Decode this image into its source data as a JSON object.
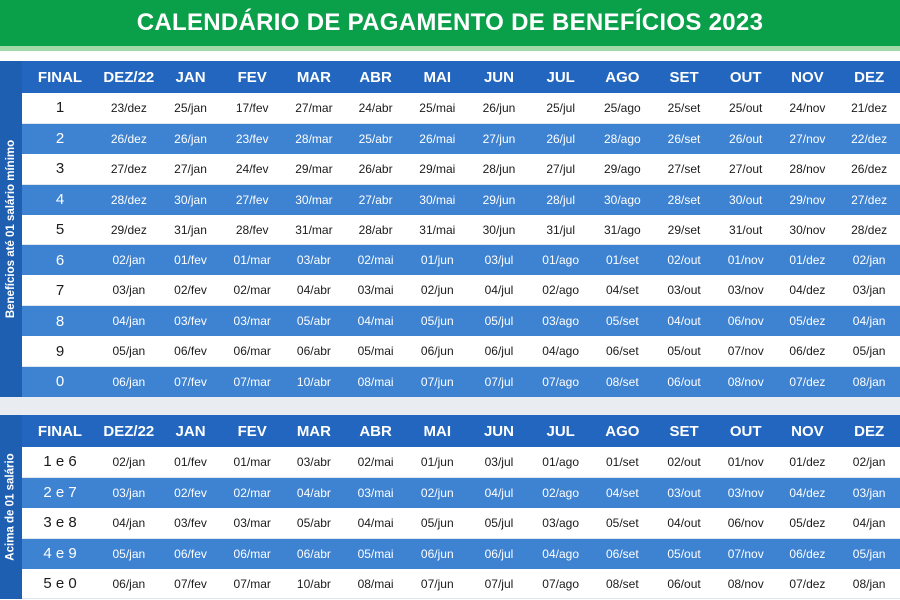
{
  "title": "CALENDÁRIO DE PAGAMENTO DE BENEFÍCIOS 2023",
  "headers": [
    "FINAL",
    "DEZ/22",
    "JAN",
    "FEV",
    "MAR",
    "ABR",
    "MAI",
    "JUN",
    "JUL",
    "AGO",
    "SET",
    "OUT",
    "NOV",
    "DEZ"
  ],
  "section1": {
    "side_label": "Benefícios até 01 salário mínimo",
    "rows": [
      [
        "1",
        "23/dez",
        "25/jan",
        "17/fev",
        "27/mar",
        "24/abr",
        "25/mai",
        "26/jun",
        "25/jul",
        "25/ago",
        "25/set",
        "25/out",
        "24/nov",
        "21/dez"
      ],
      [
        "2",
        "26/dez",
        "26/jan",
        "23/fev",
        "28/mar",
        "25/abr",
        "26/mai",
        "27/jun",
        "26/jul",
        "28/ago",
        "26/set",
        "26/out",
        "27/nov",
        "22/dez"
      ],
      [
        "3",
        "27/dez",
        "27/jan",
        "24/fev",
        "29/mar",
        "26/abr",
        "29/mai",
        "28/jun",
        "27/jul",
        "29/ago",
        "27/set",
        "27/out",
        "28/nov",
        "26/dez"
      ],
      [
        "4",
        "28/dez",
        "30/jan",
        "27/fev",
        "30/mar",
        "27/abr",
        "30/mai",
        "29/jun",
        "28/jul",
        "30/ago",
        "28/set",
        "30/out",
        "29/nov",
        "27/dez"
      ],
      [
        "5",
        "29/dez",
        "31/jan",
        "28/fev",
        "31/mar",
        "28/abr",
        "31/mai",
        "30/jun",
        "31/jul",
        "31/ago",
        "29/set",
        "31/out",
        "30/nov",
        "28/dez"
      ],
      [
        "6",
        "02/jan",
        "01/fev",
        "01/mar",
        "03/abr",
        "02/mai",
        "01/jun",
        "03/jul",
        "01/ago",
        "01/set",
        "02/out",
        "01/nov",
        "01/dez",
        "02/jan"
      ],
      [
        "7",
        "03/jan",
        "02/fev",
        "02/mar",
        "04/abr",
        "03/mai",
        "02/jun",
        "04/jul",
        "02/ago",
        "04/set",
        "03/out",
        "03/nov",
        "04/dez",
        "03/jan"
      ],
      [
        "8",
        "04/jan",
        "03/fev",
        "03/mar",
        "05/abr",
        "04/mai",
        "05/jun",
        "05/jul",
        "03/ago",
        "05/set",
        "04/out",
        "06/nov",
        "05/dez",
        "04/jan"
      ],
      [
        "9",
        "05/jan",
        "06/fev",
        "06/mar",
        "06/abr",
        "05/mai",
        "06/jun",
        "06/jul",
        "04/ago",
        "06/set",
        "05/out",
        "07/nov",
        "06/dez",
        "05/jan"
      ],
      [
        "0",
        "06/jan",
        "07/fev",
        "07/mar",
        "10/abr",
        "08/mai",
        "07/jun",
        "07/jul",
        "07/ago",
        "08/set",
        "06/out",
        "08/nov",
        "07/dez",
        "08/jan"
      ]
    ]
  },
  "section2": {
    "side_label": "Acima de 01 salário",
    "rows": [
      [
        "1 e 6",
        "02/jan",
        "01/fev",
        "01/mar",
        "03/abr",
        "02/mai",
        "01/jun",
        "03/jul",
        "01/ago",
        "01/set",
        "02/out",
        "01/nov",
        "01/dez",
        "02/jan"
      ],
      [
        "2 e 7",
        "03/jan",
        "02/fev",
        "02/mar",
        "04/abr",
        "03/mai",
        "02/jun",
        "04/jul",
        "02/ago",
        "04/set",
        "03/out",
        "03/nov",
        "04/dez",
        "03/jan"
      ],
      [
        "3 e 8",
        "04/jan",
        "03/fev",
        "03/mar",
        "05/abr",
        "04/mai",
        "05/jun",
        "05/jul",
        "03/ago",
        "05/set",
        "04/out",
        "06/nov",
        "05/dez",
        "04/jan"
      ],
      [
        "4 e 9",
        "05/jan",
        "06/fev",
        "06/mar",
        "06/abr",
        "05/mai",
        "06/jun",
        "06/jul",
        "04/ago",
        "06/set",
        "05/out",
        "07/nov",
        "06/dez",
        "05/jan"
      ],
      [
        "5 e 0",
        "06/jan",
        "07/fev",
        "07/mar",
        "10/abr",
        "08/mai",
        "07/jun",
        "07/jul",
        "07/ago",
        "08/set",
        "06/out",
        "08/nov",
        "07/dez",
        "08/jan"
      ]
    ]
  },
  "colors": {
    "title_bar": "#0a9f49",
    "header_row": "#2366c0",
    "blue_row": "#3e82d2",
    "white_row": "#ffffff",
    "side_label": "#1f5fb1"
  }
}
